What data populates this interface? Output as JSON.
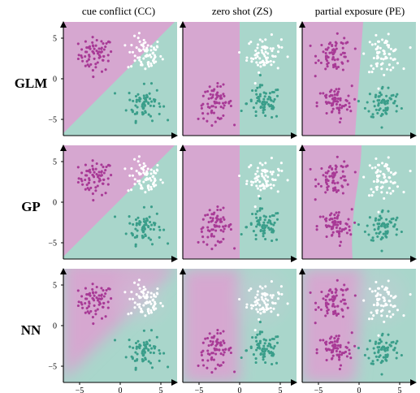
{
  "chart_data": {
    "type": "scatter",
    "columns": [
      "cue conflict (CC)",
      "zero shot (ZS)",
      "partial exposure (PE)"
    ],
    "rows": [
      "GLM",
      "GP",
      "NN"
    ],
    "xlim": [
      -7,
      7
    ],
    "ylim": [
      -7,
      7
    ],
    "x_ticks": [
      "−5",
      "0",
      "5"
    ],
    "y_ticks": [
      "5",
      "0",
      "−5"
    ],
    "x_tick_values": [
      -5,
      0,
      5
    ],
    "y_tick_values": [
      5,
      0,
      -5
    ],
    "colors": {
      "class_a_point": "#a83a96",
      "class_b_point": "#3a9e8a",
      "test_point": "#ffffff",
      "region_a": "#d6a7d0",
      "region_b": "#a9d6cb"
    },
    "clusters": {
      "CC": [
        {
          "name": "top-left",
          "cx": -3,
          "cy": 3,
          "class": "a"
        },
        {
          "name": "top-right",
          "cx": 3,
          "cy": 3,
          "class": "test"
        },
        {
          "name": "bottom-right",
          "cx": 3,
          "cy": -3,
          "class": "b"
        }
      ],
      "ZS": [
        {
          "name": "top-right",
          "cx": 3,
          "cy": 3,
          "class": "test"
        },
        {
          "name": "bottom-left",
          "cx": -3,
          "cy": -3,
          "class": "a"
        },
        {
          "name": "bottom-right",
          "cx": 3,
          "cy": -3,
          "class": "b"
        }
      ],
      "PE": [
        {
          "name": "top-left",
          "cx": -3,
          "cy": 3,
          "class": "a"
        },
        {
          "name": "top-right",
          "cx": 3,
          "cy": 3,
          "class": "test"
        },
        {
          "name": "bottom-left",
          "cx": -3,
          "cy": -3,
          "class": "a"
        },
        {
          "name": "bottom-right",
          "cx": 3,
          "cy": -3,
          "class": "b"
        }
      ]
    },
    "boundaries": {
      "GLM": {
        "CC": "diagonal",
        "ZS": "vertical",
        "PE": "tilted-vertical"
      },
      "GP": {
        "CC": "diagonal",
        "ZS": "vertical",
        "PE": "curved"
      },
      "NN": {
        "CC": "soft-diagonal",
        "ZS": "soft-vertical",
        "PE": "soft-vertical"
      }
    }
  }
}
